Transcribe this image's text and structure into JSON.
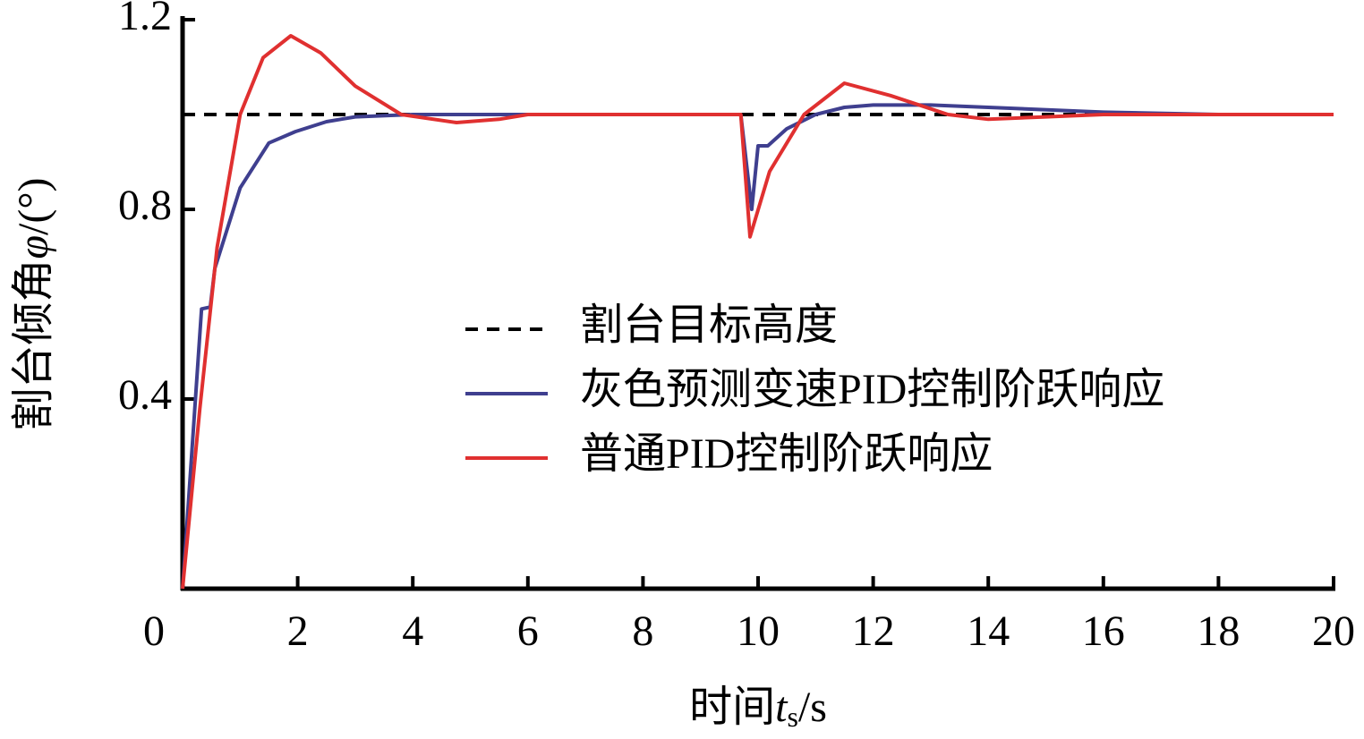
{
  "chart_data": {
    "type": "line",
    "x_label": [
      "时间",
      "t",
      "s",
      "/s"
    ],
    "y_label": [
      "割台倾角",
      "φ",
      "/(°)"
    ],
    "xlim": [
      0,
      20
    ],
    "xticks": [
      0,
      2,
      4,
      6,
      8,
      10,
      12,
      14,
      16,
      18,
      20
    ],
    "ylim": [
      0,
      1.2
    ],
    "yticks": [
      0.4,
      0.8,
      1.2
    ],
    "legend": "center",
    "series": [
      {
        "name": "割台目标高度",
        "color": "#000000",
        "dash": true,
        "x": [
          0,
          20
        ],
        "values": [
          1.0,
          1.0
        ]
      },
      {
        "name": "灰色预测变速PID控制阶跃响应",
        "color": "#3f3f8f",
        "dash": false,
        "x": [
          0,
          0.33,
          0.48,
          0.56,
          1.0,
          1.5,
          1.96,
          2.5,
          3,
          4,
          9.7,
          9.89,
          10.0,
          10.17,
          10.5,
          11,
          11.5,
          12,
          13,
          14,
          16,
          18,
          20
        ],
        "values": [
          0,
          0.59,
          0.594,
          0.675,
          0.845,
          0.94,
          0.964,
          0.985,
          0.995,
          1.0,
          1.0,
          0.8,
          0.934,
          0.934,
          0.97,
          1.0,
          1.015,
          1.02,
          1.02,
          1.015,
          1.005,
          1.0,
          1.0
        ]
      },
      {
        "name": "普通PID控制阶跃响应",
        "color": "#e03030",
        "dash": false,
        "x": [
          0,
          0.3,
          0.6,
          1.0,
          1.4,
          1.88,
          2.4,
          3.0,
          3.8,
          4.76,
          5.5,
          6,
          9.7,
          9.86,
          10.2,
          10.8,
          11.5,
          12.3,
          13.3,
          14,
          15,
          16,
          20
        ],
        "values": [
          0,
          0.38,
          0.72,
          1.0,
          1.12,
          1.166,
          1.13,
          1.06,
          1.0,
          0.983,
          0.99,
          1.0,
          1.0,
          0.742,
          0.88,
          1.0,
          1.066,
          1.04,
          1.0,
          0.99,
          0.995,
          1.0,
          1.0
        ]
      }
    ]
  }
}
